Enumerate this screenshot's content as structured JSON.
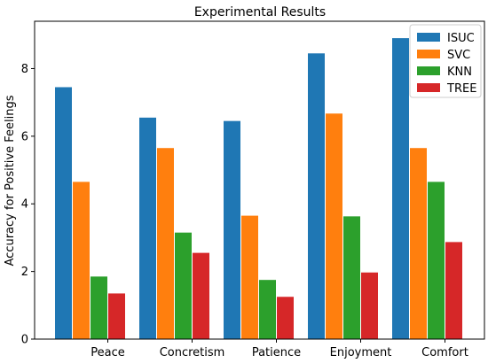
{
  "chart_data": {
    "type": "bar",
    "title": "Experimental Results",
    "xlabel": "",
    "ylabel": "Accuracy for Positive Feelings",
    "categories": [
      "Peace",
      "Concretism",
      "Patience",
      "Enjoyment",
      "Comfort"
    ],
    "series": [
      {
        "name": "ISUC",
        "color": "#1f77b4",
        "values": [
          7.45,
          6.55,
          6.45,
          8.45,
          8.9
        ]
      },
      {
        "name": "SVC",
        "color": "#ff7f0e",
        "values": [
          4.65,
          5.65,
          3.65,
          6.67,
          5.65
        ]
      },
      {
        "name": "KNN",
        "color": "#2ca02c",
        "values": [
          1.85,
          3.15,
          1.75,
          3.63,
          4.65
        ]
      },
      {
        "name": "TREE",
        "color": "#d62728",
        "values": [
          1.35,
          2.55,
          1.25,
          1.97,
          2.87
        ]
      }
    ],
    "ylim": [
      0,
      9.4
    ],
    "yticks": [
      0,
      2,
      4,
      6,
      8
    ],
    "grid": false,
    "legend_position": "top-right"
  }
}
